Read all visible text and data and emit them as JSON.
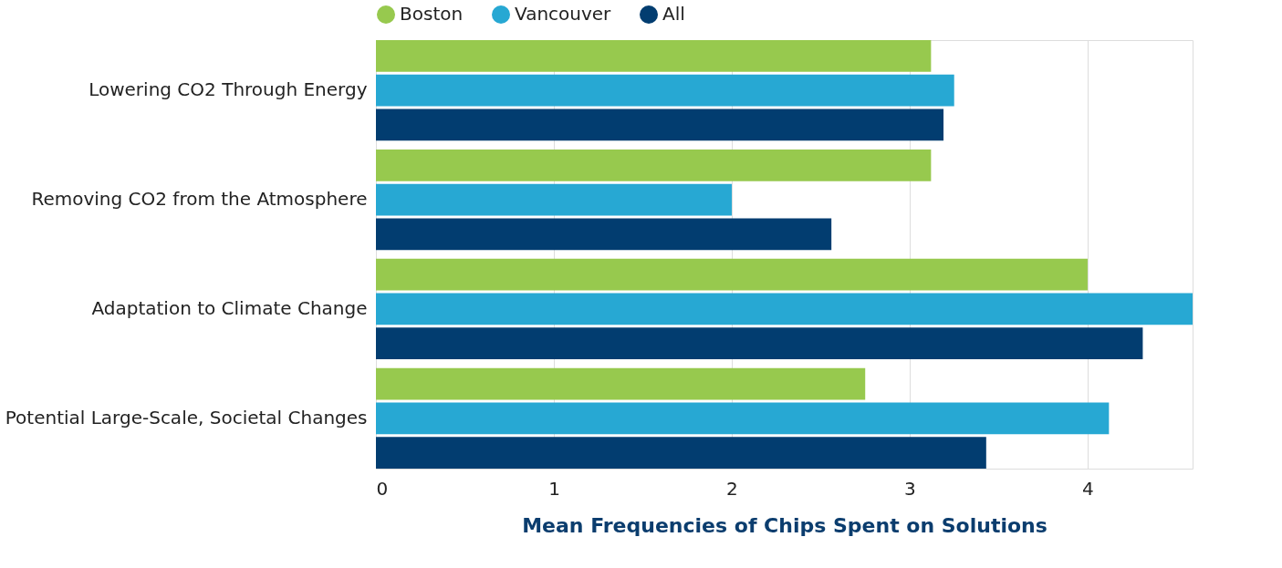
{
  "chart_data": {
    "type": "bar",
    "orientation": "horizontal",
    "xlabel": "Mean Frequencies of Chips Spent on Solutions",
    "categories": [
      "Lowering CO2 Through Energy",
      "Removing CO2 from the Atmosphere",
      "Adaptation to Climate Change",
      "Potential Large-Scale, Societal Changes"
    ],
    "series": [
      {
        "name": "Boston",
        "color": "#97c94e",
        "values": [
          3.12,
          3.12,
          4.0,
          2.75
        ]
      },
      {
        "name": "Vancouver",
        "color": "#27a8d3",
        "values": [
          3.25,
          2.0,
          4.59,
          4.12
        ]
      },
      {
        "name": "All",
        "color": "#023d70",
        "values": [
          3.19,
          2.56,
          4.31,
          3.43
        ]
      }
    ],
    "xlim": [
      0,
      4.59
    ],
    "xticks": [
      0,
      1,
      2,
      3,
      4
    ],
    "grid": "x",
    "legend": "top"
  }
}
